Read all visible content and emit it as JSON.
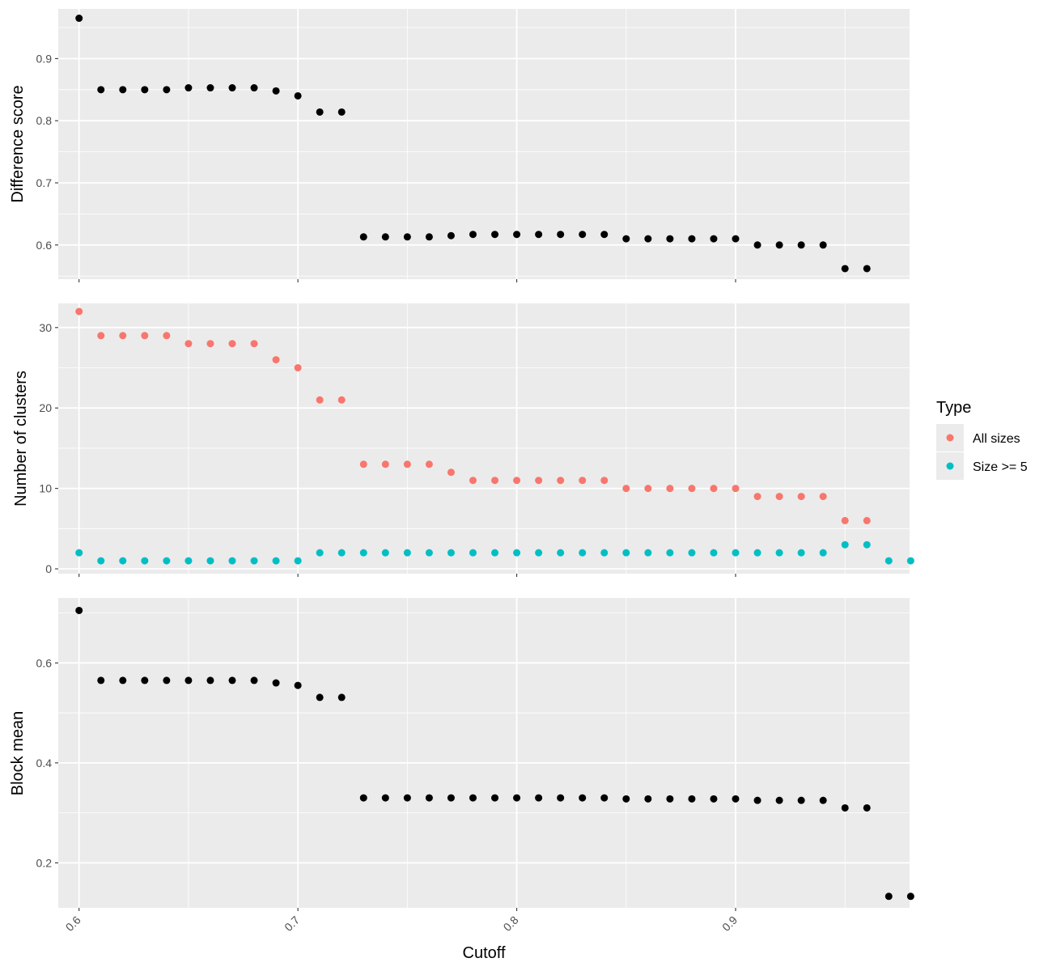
{
  "colors": {
    "panel_bg": "#ebebeb",
    "grid": "#ffffff",
    "black": "#000000",
    "all_sizes": "#F8766D",
    "size_ge_5": "#00BFC4",
    "tick": "#333333"
  },
  "chart_data": [
    {
      "type": "scatter",
      "ylabel": "Difference score",
      "xlim": [
        0.5905,
        0.9795
      ],
      "ylim": [
        0.545,
        0.98
      ],
      "yticks": [
        0.6,
        0.7,
        0.8,
        0.9
      ],
      "ytick_labels": [
        "0.6",
        "0.7",
        "0.8",
        "0.9"
      ],
      "xticks": [
        0.6,
        0.7,
        0.8,
        0.9
      ],
      "xtick_labels": [
        "0.6",
        "0.7",
        "0.8",
        "0.9"
      ],
      "series": [
        {
          "color": "#000000",
          "x": [
            0.6,
            0.61,
            0.62,
            0.63,
            0.64,
            0.65,
            0.66,
            0.67,
            0.68,
            0.69,
            0.7,
            0.71,
            0.72,
            0.73,
            0.74,
            0.75,
            0.76,
            0.77,
            0.78,
            0.79,
            0.8,
            0.81,
            0.82,
            0.83,
            0.84,
            0.85,
            0.86,
            0.87,
            0.88,
            0.89,
            0.9,
            0.91,
            0.92,
            0.93,
            0.94,
            0.95,
            0.96
          ],
          "y": [
            0.965,
            0.85,
            0.85,
            0.85,
            0.85,
            0.853,
            0.853,
            0.853,
            0.853,
            0.848,
            0.84,
            0.814,
            0.814,
            0.613,
            0.613,
            0.613,
            0.613,
            0.615,
            0.617,
            0.617,
            0.617,
            0.617,
            0.617,
            0.617,
            0.617,
            0.61,
            0.61,
            0.61,
            0.61,
            0.61,
            0.61,
            0.6,
            0.6,
            0.6,
            0.6,
            0.562,
            0.562
          ]
        }
      ]
    },
    {
      "type": "scatter",
      "ylabel": "Number of clusters",
      "xlim": [
        0.5905,
        0.9795
      ],
      "ylim": [
        -0.6,
        33.0
      ],
      "yticks": [
        0,
        10,
        20,
        30
      ],
      "ytick_labels": [
        "0",
        "10",
        "20",
        "30"
      ],
      "xticks": [
        0.6,
        0.7,
        0.8,
        0.9
      ],
      "xtick_labels": [
        "0.6",
        "0.7",
        "0.8",
        "0.9"
      ],
      "series": [
        {
          "name": "All sizes",
          "color": "#F8766D",
          "x": [
            0.6,
            0.61,
            0.62,
            0.63,
            0.64,
            0.65,
            0.66,
            0.67,
            0.68,
            0.69,
            0.7,
            0.71,
            0.72,
            0.73,
            0.74,
            0.75,
            0.76,
            0.77,
            0.78,
            0.79,
            0.8,
            0.81,
            0.82,
            0.83,
            0.84,
            0.85,
            0.86,
            0.87,
            0.88,
            0.89,
            0.9,
            0.91,
            0.92,
            0.93,
            0.94,
            0.95,
            0.96
          ],
          "y": [
            32,
            29,
            29,
            29,
            29,
            28,
            28,
            28,
            28,
            26,
            25,
            21,
            21,
            13,
            13,
            13,
            13,
            12,
            11,
            11,
            11,
            11,
            11,
            11,
            11,
            10,
            10,
            10,
            10,
            10,
            10,
            9,
            9,
            9,
            9,
            6,
            6
          ]
        },
        {
          "name": "Size >= 5",
          "color": "#00BFC4",
          "x": [
            0.6,
            0.61,
            0.62,
            0.63,
            0.64,
            0.65,
            0.66,
            0.67,
            0.68,
            0.69,
            0.7,
            0.71,
            0.72,
            0.73,
            0.74,
            0.75,
            0.76,
            0.77,
            0.78,
            0.79,
            0.8,
            0.81,
            0.82,
            0.83,
            0.84,
            0.85,
            0.86,
            0.87,
            0.88,
            0.89,
            0.9,
            0.91,
            0.92,
            0.93,
            0.94,
            0.95,
            0.96,
            0.97,
            0.98
          ],
          "y": [
            2,
            1,
            1,
            1,
            1,
            1,
            1,
            1,
            1,
            1,
            1,
            2,
            2,
            2,
            2,
            2,
            2,
            2,
            2,
            2,
            2,
            2,
            2,
            2,
            2,
            2,
            2,
            2,
            2,
            2,
            2,
            2,
            2,
            2,
            2,
            3,
            3,
            1,
            1
          ]
        }
      ],
      "legend": {
        "title": "Type",
        "entries": [
          "All sizes",
          "Size >= 5"
        ],
        "placement": "right"
      }
    },
    {
      "type": "scatter",
      "ylabel": "Block mean",
      "xlabel": "Cutoff",
      "xlim": [
        0.5905,
        0.9795
      ],
      "ylim": [
        0.11,
        0.73
      ],
      "yticks": [
        0.2,
        0.4,
        0.6
      ],
      "ytick_labels": [
        "0.2",
        "0.4",
        "0.6"
      ],
      "xticks": [
        0.6,
        0.7,
        0.8,
        0.9
      ],
      "xtick_labels": [
        "0.6",
        "0.7",
        "0.8",
        "0.9"
      ],
      "series": [
        {
          "color": "#000000",
          "x": [
            0.6,
            0.61,
            0.62,
            0.63,
            0.64,
            0.65,
            0.66,
            0.67,
            0.68,
            0.69,
            0.7,
            0.71,
            0.72,
            0.73,
            0.74,
            0.75,
            0.76,
            0.77,
            0.78,
            0.79,
            0.8,
            0.81,
            0.82,
            0.83,
            0.84,
            0.85,
            0.86,
            0.87,
            0.88,
            0.89,
            0.9,
            0.91,
            0.92,
            0.93,
            0.94,
            0.95,
            0.96,
            0.97,
            0.98
          ],
          "y": [
            0.705,
            0.565,
            0.565,
            0.565,
            0.565,
            0.565,
            0.565,
            0.565,
            0.565,
            0.56,
            0.555,
            0.531,
            0.531,
            0.33,
            0.33,
            0.33,
            0.33,
            0.33,
            0.33,
            0.33,
            0.33,
            0.33,
            0.33,
            0.33,
            0.33,
            0.328,
            0.328,
            0.328,
            0.328,
            0.328,
            0.328,
            0.325,
            0.325,
            0.325,
            0.325,
            0.31,
            0.31,
            0.133,
            0.133
          ]
        }
      ]
    }
  ]
}
